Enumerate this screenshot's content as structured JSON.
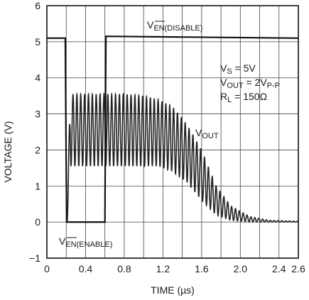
{
  "chart_data": {
    "type": "line",
    "title": "",
    "xlabel": "TIME (µs)",
    "ylabel": "VOLTAGE (V)",
    "xlim": [
      0,
      2.6
    ],
    "ylim": [
      -1,
      6
    ],
    "grid": true,
    "x_ticks": [
      0,
      0.2,
      0.4,
      0.6,
      0.8,
      1.0,
      1.2,
      1.4,
      1.6,
      1.8,
      2.0,
      2.2,
      2.4,
      2.6
    ],
    "x_tick_labels": [
      "0",
      "0.4",
      "0.8",
      "1.2",
      "1.6",
      "2.0",
      "2.4",
      "2.6"
    ],
    "x_tick_label_values": [
      0,
      0.4,
      0.8,
      1.2,
      1.6,
      2.0,
      2.4,
      2.6
    ],
    "y_ticks": [
      -1,
      0,
      1,
      2,
      3,
      4,
      5,
      6
    ],
    "y_tick_labels": [
      "−1",
      "0",
      "1",
      "2",
      "3",
      "4",
      "5",
      "6"
    ],
    "series": [
      {
        "name": "VEN",
        "description": "enable pin: 5.1V (disable) stepping to 0V (enable) at ~0.2µs and back to 5.1V at ~0.6µs",
        "x": [
          0,
          0.19,
          0.2,
          0.205,
          0.6,
          0.61,
          2.6
        ],
        "y": [
          5.1,
          5.1,
          1.5,
          0,
          0,
          5.15,
          5.1
        ]
      },
      {
        "name": "VOUT",
        "envelope": {
          "x": [
            0.21,
            0.24,
            0.4,
            0.8,
            1.0,
            1.15,
            1.3,
            1.45,
            1.6,
            1.75,
            1.9,
            2.1,
            2.3,
            2.6
          ],
          "high": [
            0,
            3.55,
            3.55,
            3.55,
            3.5,
            3.4,
            3.2,
            2.7,
            2.0,
            1.0,
            0.45,
            0.15,
            0.05,
            0.02
          ],
          "low": [
            0,
            1.55,
            1.55,
            1.55,
            1.55,
            1.55,
            1.4,
            1.1,
            0.6,
            0.2,
            0.05,
            0.0,
            0.0,
            0.0
          ]
        },
        "oscillation_period_us": 0.04
      }
    ],
    "annotations": {
      "ven_disable": {
        "main": "V",
        "sub": "EN(DISABLE)",
        "overline": "EN"
      },
      "ven_enable": {
        "main": "V",
        "sub": "EN(ENABLE)",
        "overline": "EN"
      },
      "vout": {
        "main": "V",
        "sub": "OUT"
      },
      "vs": {
        "main": "V",
        "sub": "S",
        "rest": " = 5V"
      },
      "vout_pp": {
        "main": "V",
        "sub": "OUT",
        "mid": " = 2V",
        "sub2": "P-P"
      },
      "rl": {
        "main": "R",
        "sub": "L",
        "rest": " = 150Ω"
      }
    }
  }
}
